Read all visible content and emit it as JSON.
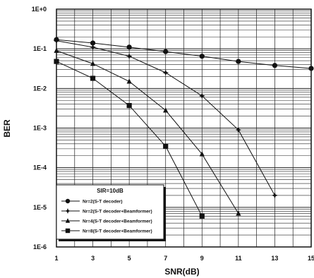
{
  "chart_data": {
    "type": "line",
    "title": "",
    "xlabel": "SNR(dB)",
    "ylabel": "BER",
    "x_ticks": [
      "1",
      "3",
      "5",
      "7",
      "9",
      "11",
      "13",
      "15"
    ],
    "y_ticks": [
      "1E+0",
      "1E-1",
      "1E-2",
      "1E-3",
      "1E-4",
      "1E-5",
      "1E-6"
    ],
    "xlim": [
      1,
      15
    ],
    "ylim": [
      1e-06,
      1
    ],
    "yscale": "log",
    "grid": true,
    "legend_position": "bottom-left",
    "legend_title": "SIR=10dB",
    "series": [
      {
        "name": "Nr=2(S-T decoder)",
        "marker": "circle",
        "x": [
          1,
          3,
          5,
          7,
          9,
          11,
          13,
          15
        ],
        "y": [
          0.17,
          0.14,
          0.11,
          0.085,
          0.065,
          0.048,
          0.038,
          0.032
        ]
      },
      {
        "name": "Nr=2(S-T decoder+Beamformer)",
        "marker": "diamond",
        "x": [
          1,
          3,
          5,
          7,
          9,
          11,
          13
        ],
        "y": [
          0.16,
          0.11,
          0.065,
          0.025,
          0.0065,
          0.0009,
          2e-05
        ]
      },
      {
        "name": "Nr=4(S-T decoder+Beamformer)",
        "marker": "triangle",
        "x": [
          1,
          3,
          5,
          7,
          9,
          11
        ],
        "y": [
          0.09,
          0.042,
          0.015,
          0.0028,
          0.00022,
          7e-06
        ]
      },
      {
        "name": "Nr=8(S-T decoder+Beamformer)",
        "marker": "square",
        "x": [
          1,
          3,
          5,
          7,
          9
        ],
        "y": [
          0.048,
          0.018,
          0.0037,
          0.00035,
          6e-06
        ]
      }
    ]
  }
}
